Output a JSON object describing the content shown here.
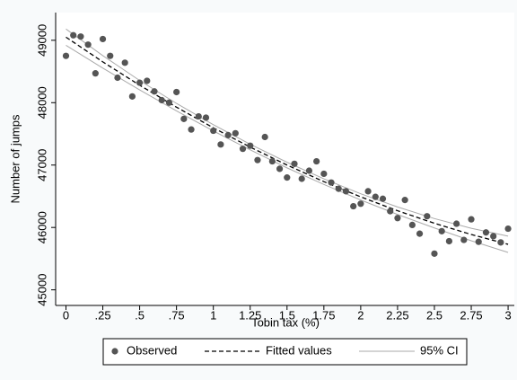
{
  "chart_data": {
    "type": "scatter",
    "xlabel": "Tobin tax (%)",
    "ylabel": "Number of jumps",
    "xlim": [
      -0.07,
      3.03
    ],
    "ylim": [
      44750,
      49300
    ],
    "xticks": [
      0,
      {
        "value": 0.25,
        "label": ".25"
      },
      {
        "value": 0.5,
        "label": ".5"
      },
      {
        "value": 0.75,
        "label": ".75"
      },
      1,
      1.25,
      1.5,
      1.75,
      2,
      2.25,
      2.5,
      2.75,
      3
    ],
    "yticks": [
      45000,
      46000,
      47000,
      48000,
      49000
    ],
    "series": [
      {
        "name": "Observed",
        "kind": "points",
        "color": "#555555",
        "x": [
          0,
          0.05,
          0.1,
          0.15,
          0.2,
          0.25,
          0.3,
          0.35,
          0.4,
          0.45,
          0.5,
          0.55,
          0.6,
          0.65,
          0.7,
          0.75,
          0.8,
          0.85,
          0.9,
          0.95,
          1,
          1.05,
          1.1,
          1.15,
          1.2,
          1.25,
          1.3,
          1.35,
          1.4,
          1.45,
          1.5,
          1.55,
          1.6,
          1.65,
          1.7,
          1.75,
          1.8,
          1.85,
          1.9,
          1.95,
          2,
          2.05,
          2.1,
          2.15,
          2.2,
          2.25,
          2.3,
          2.35,
          2.4,
          2.45,
          2.5,
          2.55,
          2.6,
          2.65,
          2.7,
          2.75,
          2.8,
          2.85,
          2.9,
          2.95,
          3
        ],
        "values": [
          48750,
          49080,
          49060,
          48930,
          48470,
          49020,
          48750,
          48400,
          48640,
          48100,
          48320,
          48350,
          48180,
          48040,
          48000,
          48170,
          47740,
          47570,
          47780,
          47760,
          47550,
          47330,
          47480,
          47510,
          47260,
          47310,
          47080,
          47450,
          47060,
          46940,
          46800,
          47020,
          46780,
          46910,
          47060,
          46860,
          46720,
          46620,
          46580,
          46340,
          46380,
          46580,
          46490,
          46460,
          46260,
          46150,
          46440,
          46040,
          45900,
          46180,
          45580,
          45940,
          45780,
          46060,
          45800,
          46130,
          45770,
          45920,
          45860,
          45760,
          45980
        ]
      },
      {
        "name": "Fitted values",
        "kind": "dashed",
        "color": "#000000",
        "x": [
          0,
          0.25,
          0.5,
          0.75,
          1,
          1.25,
          1.5,
          1.75,
          2,
          2.25,
          2.5,
          2.75,
          3
        ],
        "values": [
          49050,
          48654,
          48280,
          47928,
          47597,
          47288,
          47000,
          46734,
          46490,
          46268,
          46067,
          45887,
          45730
        ]
      },
      {
        "name": "95% CI",
        "kind": "band",
        "color": "#aaaaaa",
        "x": [
          0,
          0.25,
          0.5,
          0.75,
          1,
          1.25,
          1.5,
          1.75,
          2,
          2.25,
          2.5,
          2.75,
          3
        ],
        "upper": [
          49180,
          48754,
          48355,
          47988,
          47647,
          47333,
          47045,
          46779,
          46540,
          46328,
          46142,
          45987,
          45860
        ],
        "lower": [
          48920,
          48554,
          48205,
          47868,
          47547,
          47243,
          46955,
          46689,
          46440,
          46208,
          45992,
          45787,
          45600
        ]
      }
    ]
  }
}
